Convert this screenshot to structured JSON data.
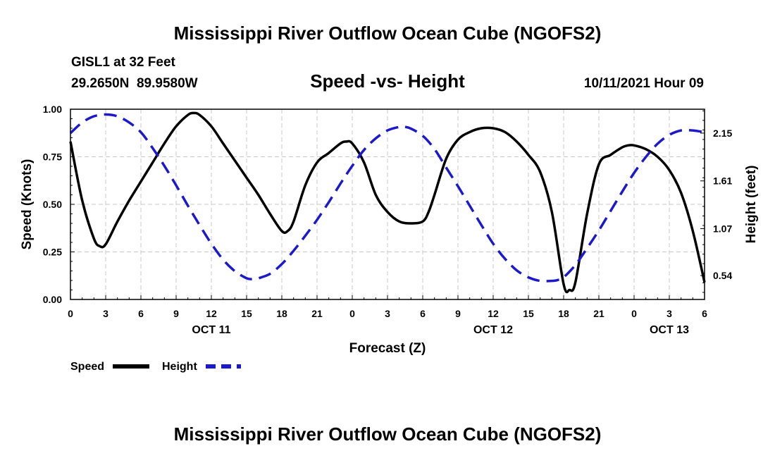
{
  "header": {
    "title": "Mississippi River Outflow Ocean Cube (NGOFS2)",
    "station_line": "GISL1 at 32 Feet",
    "coords_line": "29.2650N  89.9580W",
    "subtitle": "Speed -vs- Height",
    "run_time": "10/11/2021 Hour 09"
  },
  "footer": {
    "title": "Mississippi River Outflow Ocean Cube (NGOFS2)"
  },
  "chart_data": {
    "type": "line",
    "title": "Speed -vs- Height",
    "xlabel": "Forecast (Z)",
    "ylabel": "Speed (Knots)",
    "y2label": "Height (feet)",
    "xlim": [
      0,
      54
    ],
    "ylim": [
      0,
      1
    ],
    "y2lim": [
      0.27,
      2.42
    ],
    "grid": true,
    "x_ticks": [
      {
        "x": 0,
        "label": "0"
      },
      {
        "x": 3,
        "label": "3"
      },
      {
        "x": 6,
        "label": "6"
      },
      {
        "x": 9,
        "label": "9"
      },
      {
        "x": 12,
        "label": "12"
      },
      {
        "x": 15,
        "label": "15"
      },
      {
        "x": 18,
        "label": "18"
      },
      {
        "x": 21,
        "label": "21"
      },
      {
        "x": 24,
        "label": "0"
      },
      {
        "x": 27,
        "label": "3"
      },
      {
        "x": 30,
        "label": "6"
      },
      {
        "x": 33,
        "label": "9"
      },
      {
        "x": 36,
        "label": "12"
      },
      {
        "x": 39,
        "label": "15"
      },
      {
        "x": 42,
        "label": "18"
      },
      {
        "x": 45,
        "label": "21"
      },
      {
        "x": 48,
        "label": "0"
      },
      {
        "x": 51,
        "label": "3"
      },
      {
        "x": 54,
        "label": "6"
      }
    ],
    "day_labels": [
      {
        "x": 12,
        "label": "OCT 11"
      },
      {
        "x": 36,
        "label": "OCT 12"
      },
      {
        "x": 51,
        "label": "OCT 13"
      }
    ],
    "y_ticks": [
      {
        "value": 0.0,
        "label": "0.00"
      },
      {
        "value": 0.25,
        "label": "0.25"
      },
      {
        "value": 0.5,
        "label": "0.50"
      },
      {
        "value": 0.75,
        "label": "0.75"
      },
      {
        "value": 1.0,
        "label": "1.00"
      }
    ],
    "y2_ticks": [
      {
        "value": 0.54,
        "label": "0.54"
      },
      {
        "value": 1.07,
        "label": "1.07"
      },
      {
        "value": 1.61,
        "label": "1.61"
      },
      {
        "value": 2.15,
        "label": "2.15"
      }
    ],
    "series": [
      {
        "name": "Speed",
        "axis": "left",
        "color": "#000000",
        "style": "solid",
        "x": [
          0,
          1,
          2,
          2.5,
          3,
          4,
          5,
          6,
          7,
          8,
          9,
          10,
          10.5,
          11,
          12,
          13,
          14,
          15,
          16,
          17,
          18,
          18.5,
          19,
          20,
          21,
          22,
          23,
          23.5,
          24,
          25,
          26,
          27,
          28,
          29,
          30,
          30.5,
          31,
          32,
          33,
          34,
          35,
          36,
          37,
          38,
          39,
          40,
          41,
          42,
          42.5,
          43,
          44,
          45,
          46,
          47,
          47.5,
          48,
          49,
          50,
          51,
          52,
          53,
          54
        ],
        "values": [
          0.83,
          0.52,
          0.32,
          0.28,
          0.29,
          0.41,
          0.52,
          0.62,
          0.72,
          0.82,
          0.91,
          0.97,
          0.98,
          0.97,
          0.91,
          0.82,
          0.73,
          0.64,
          0.55,
          0.45,
          0.36,
          0.36,
          0.41,
          0.6,
          0.72,
          0.77,
          0.82,
          0.83,
          0.82,
          0.72,
          0.55,
          0.46,
          0.41,
          0.4,
          0.41,
          0.46,
          0.55,
          0.74,
          0.84,
          0.88,
          0.9,
          0.9,
          0.88,
          0.83,
          0.76,
          0.67,
          0.46,
          0.08,
          0.05,
          0.09,
          0.45,
          0.71,
          0.76,
          0.8,
          0.81,
          0.81,
          0.79,
          0.75,
          0.68,
          0.56,
          0.36,
          0.09
        ]
      },
      {
        "name": "Height",
        "axis": "right",
        "color": "#1a1acc",
        "style": "dashed",
        "x": [
          0,
          1,
          2,
          3,
          4,
          5,
          6,
          7,
          8,
          9,
          10,
          11,
          12,
          13,
          14,
          15,
          15.5,
          16,
          17,
          18,
          19,
          20,
          21,
          22,
          23,
          24,
          25,
          26,
          27,
          28,
          28.5,
          29,
          30,
          31,
          32,
          33,
          34,
          35,
          36,
          37,
          38,
          39,
          40,
          41,
          41.5,
          42,
          43,
          44,
          45,
          46,
          47,
          48,
          49,
          50,
          51,
          52,
          53,
          54
        ],
        "values": [
          2.15,
          2.27,
          2.34,
          2.36,
          2.34,
          2.27,
          2.16,
          1.98,
          1.78,
          1.56,
          1.33,
          1.11,
          0.9,
          0.72,
          0.59,
          0.51,
          0.5,
          0.51,
          0.56,
          0.67,
          0.82,
          0.99,
          1.17,
          1.37,
          1.58,
          1.78,
          1.96,
          2.09,
          2.18,
          2.22,
          2.22,
          2.2,
          2.12,
          1.97,
          1.76,
          1.55,
          1.33,
          1.11,
          0.9,
          0.73,
          0.6,
          0.52,
          0.48,
          0.48,
          0.49,
          0.52,
          0.66,
          0.85,
          1.05,
          1.27,
          1.49,
          1.7,
          1.88,
          2.03,
          2.13,
          2.18,
          2.18,
          2.16
        ]
      }
    ],
    "legend": [
      {
        "label": "Speed",
        "color": "#000000",
        "style": "solid"
      },
      {
        "label": "Height",
        "color": "#1a1acc",
        "style": "dashed"
      }
    ],
    "legend_position": "bottom-left"
  }
}
